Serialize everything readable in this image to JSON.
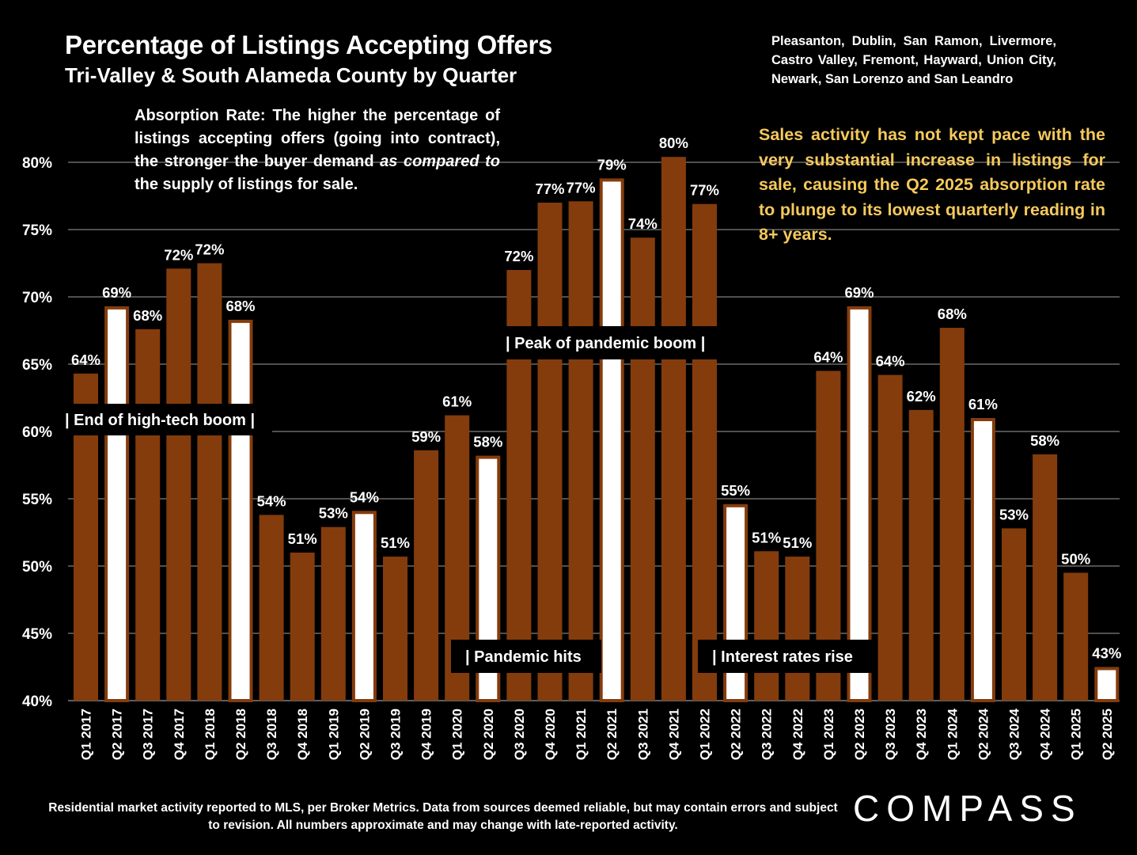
{
  "header": {
    "title": "Percentage of Listings Accepting Offers",
    "subtitle": "Tri-Valley & South Alameda County by Quarter",
    "cities": "Pleasanton, Dublin, San Ramon, Livermore, Castro Valley, Fremont, Hayward, Union City, Newark, San Lorenzo and San Leandro"
  },
  "notes": {
    "absorption_prefix": "Absorption Rate: The higher the percentage of listings accepting offers (going into contract), the stronger the buyer demand ",
    "absorption_italic": "as compared to",
    "absorption_suffix": " the supply of listings for sale.",
    "sales_activity": "Sales activity has not kept pace with the very substantial increase in listings for sale, causing the Q2 2025 absorption rate to plunge to its lowest quarterly reading in 8+ years."
  },
  "footer": {
    "disclaimer": "Residential market activity reported to MLS, per Broker Metrics. Data from sources deemed reliable, but may contain errors and subject to revision. All numbers approximate and may change with late-reported activity.",
    "logo": "COMPASS"
  },
  "colors": {
    "bar": "#843c0c",
    "bar_highlight": "#ffffff",
    "grid": "#7f7f7f",
    "note_accent": "#f5c95c"
  },
  "chart_data": {
    "type": "bar",
    "categories": [
      "Q1 2017",
      "Q2 2017",
      "Q3 2017",
      "Q4 2017",
      "Q1 2018",
      "Q2 2018",
      "Q3 2018",
      "Q4 2018",
      "Q1 2019",
      "Q2 2019",
      "Q3 2019",
      "Q4 2019",
      "Q1 2020",
      "Q2 2020",
      "Q3 2020",
      "Q4 2020",
      "Q1 2021",
      "Q2 2021",
      "Q3 2021",
      "Q4 2021",
      "Q1 2022",
      "Q2 2022",
      "Q3 2022",
      "Q4 2022",
      "Q1 2023",
      "Q2 2023",
      "Q3 2023",
      "Q4 2023",
      "Q1 2024",
      "Q2 2024",
      "Q3 2024",
      "Q4 2024",
      "Q1 2025",
      "Q2 2025"
    ],
    "values": [
      64.3,
      69.3,
      67.6,
      72.1,
      72.5,
      68.3,
      53.8,
      51.0,
      52.9,
      54.1,
      50.7,
      58.6,
      61.2,
      58.2,
      72.0,
      77.0,
      77.1,
      78.8,
      74.4,
      80.4,
      76.9,
      54.6,
      51.1,
      50.7,
      64.5,
      69.3,
      64.2,
      61.6,
      67.7,
      61.0,
      52.8,
      58.3,
      49.5,
      42.5
    ],
    "labels": [
      "64%",
      "69%",
      "68%",
      "72%",
      "72%",
      "68%",
      "54%",
      "51%",
      "53%",
      "54%",
      "51%",
      "59%",
      "61%",
      "58%",
      "72%",
      "77%",
      "77%",
      "79%",
      "74%",
      "80%",
      "77%",
      "55%",
      "51%",
      "51%",
      "64%",
      "69%",
      "64%",
      "62%",
      "68%",
      "61%",
      "53%",
      "58%",
      "50%",
      "43%"
    ],
    "highlight": [
      false,
      true,
      false,
      false,
      false,
      true,
      false,
      false,
      false,
      true,
      false,
      false,
      false,
      true,
      false,
      false,
      false,
      true,
      false,
      false,
      false,
      true,
      false,
      false,
      false,
      true,
      false,
      false,
      false,
      true,
      false,
      false,
      false,
      true
    ],
    "y_ticks": [
      "40%",
      "45%",
      "50%",
      "55%",
      "60%",
      "65%",
      "70%",
      "75%",
      "80%"
    ],
    "ylim": [
      40,
      80
    ],
    "grid": true,
    "annotations": [
      "| End of high-tech boom  |",
      "| Pandemic hits",
      "| Peak of pandemic boom |",
      "| Interest rates rise"
    ]
  }
}
